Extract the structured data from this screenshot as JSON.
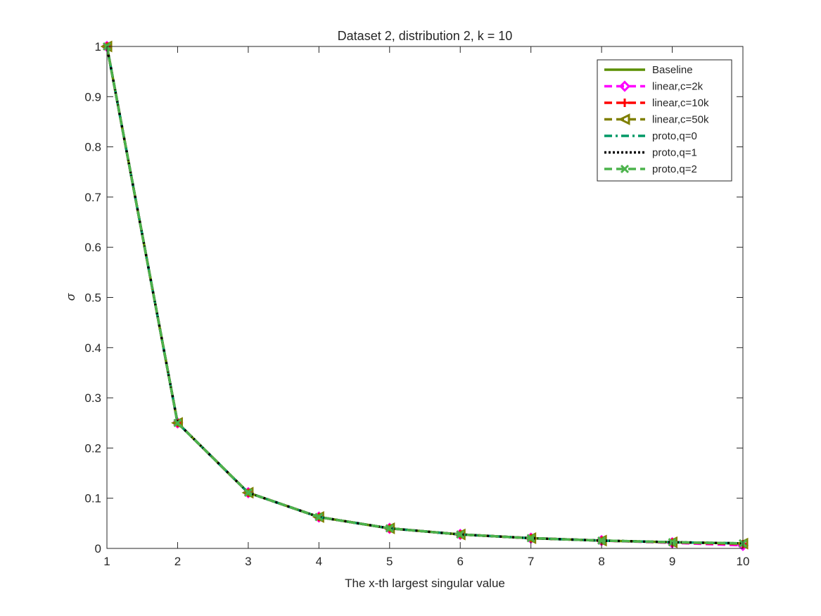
{
  "chart_data": {
    "type": "line",
    "title": "Dataset 2, distribution 2, k = 10",
    "xlabel": "The x-th largest singular value",
    "ylabel": "σ",
    "xlim": [
      1,
      10
    ],
    "ylim": [
      0,
      1
    ],
    "xticks": [
      "1",
      "2",
      "3",
      "4",
      "5",
      "6",
      "7",
      "8",
      "9",
      "10"
    ],
    "yticks": [
      "0",
      "0.1",
      "0.2",
      "0.3",
      "0.4",
      "0.5",
      "0.6",
      "0.7",
      "0.8",
      "0.9",
      "1"
    ],
    "grid": false,
    "legend_position": "top-right",
    "x": [
      1,
      2,
      3,
      4,
      5,
      6,
      7,
      8,
      9,
      10
    ],
    "series": [
      {
        "name": "Baseline",
        "color": "#5a8f00",
        "dash": "solid",
        "marker": "none",
        "values": [
          1.0,
          0.25,
          0.111,
          0.0625,
          0.04,
          0.0278,
          0.0204,
          0.0156,
          0.0123,
          0.01
        ]
      },
      {
        "name": "linear,c=2k",
        "color": "#ff00ff",
        "dash": "dashed",
        "marker": "diamond",
        "values": [
          1.0,
          0.25,
          0.111,
          0.0625,
          0.04,
          0.0278,
          0.0204,
          0.0156,
          0.0112,
          0.006
        ]
      },
      {
        "name": "linear,c=10k",
        "color": "#ff0000",
        "dash": "dashed",
        "marker": "plus",
        "values": [
          1.0,
          0.25,
          0.111,
          0.0625,
          0.04,
          0.0278,
          0.0204,
          0.0156,
          0.0118,
          0.0085
        ]
      },
      {
        "name": "linear,c=50k",
        "color": "#7f7f00",
        "dash": "dashed",
        "marker": "triangle-left",
        "values": [
          1.0,
          0.25,
          0.111,
          0.0625,
          0.04,
          0.0278,
          0.0204,
          0.0156,
          0.0122,
          0.0095
        ]
      },
      {
        "name": "proto,q=0",
        "color": "#009966",
        "dash": "dashdot",
        "marker": "none",
        "values": [
          1.0,
          0.25,
          0.111,
          0.0625,
          0.04,
          0.0278,
          0.0204,
          0.0156,
          0.0123,
          0.01
        ]
      },
      {
        "name": "proto,q=1",
        "color": "#000000",
        "dash": "dotted",
        "marker": "none",
        "values": [
          1.0,
          0.25,
          0.111,
          0.0625,
          0.04,
          0.0278,
          0.0204,
          0.0156,
          0.0123,
          0.01
        ]
      },
      {
        "name": "proto,q=2",
        "color": "#4cb34c",
        "dash": "dashed",
        "marker": "x",
        "values": [
          1.0,
          0.25,
          0.111,
          0.0625,
          0.04,
          0.0278,
          0.0204,
          0.0156,
          0.0123,
          0.01
        ]
      }
    ]
  }
}
